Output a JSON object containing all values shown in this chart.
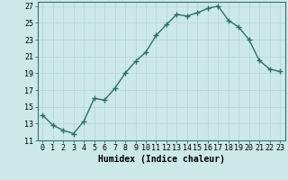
{
  "x": [
    0,
    1,
    2,
    3,
    4,
    5,
    6,
    7,
    8,
    9,
    10,
    11,
    12,
    13,
    14,
    15,
    16,
    17,
    18,
    19,
    20,
    21,
    22,
    23
  ],
  "y": [
    14.0,
    12.8,
    12.2,
    11.8,
    13.3,
    16.0,
    15.8,
    17.2,
    19.0,
    20.4,
    21.5,
    23.5,
    24.8,
    26.0,
    25.8,
    26.2,
    26.7,
    27.0,
    25.3,
    24.5,
    23.0,
    20.5,
    19.5,
    19.2
  ],
  "line_color": "#2e6e6e",
  "marker": "+",
  "marker_size": 4,
  "linewidth": 1.0,
  "bg_color": "#cce8e8",
  "grid_color": "#b8d8d8",
  "xlabel": "Humidex (Indice chaleur)",
  "xlabel_fontsize": 7,
  "tick_fontsize": 6,
  "ylim": [
    11,
    27.5
  ],
  "xlim": [
    -0.5,
    23.5
  ],
  "yticks": [
    11,
    13,
    15,
    17,
    19,
    21,
    23,
    25,
    27
  ],
  "xticks": [
    0,
    1,
    2,
    3,
    4,
    5,
    6,
    7,
    8,
    9,
    10,
    11,
    12,
    13,
    14,
    15,
    16,
    17,
    18,
    19,
    20,
    21,
    22,
    23
  ],
  "xtick_labels": [
    "0",
    "1",
    "2",
    "3",
    "4",
    "5",
    "6",
    "7",
    "8",
    "9",
    "10",
    "11",
    "12",
    "13",
    "14",
    "15",
    "16",
    "17",
    "18",
    "19",
    "20",
    "21",
    "22",
    "23"
  ]
}
